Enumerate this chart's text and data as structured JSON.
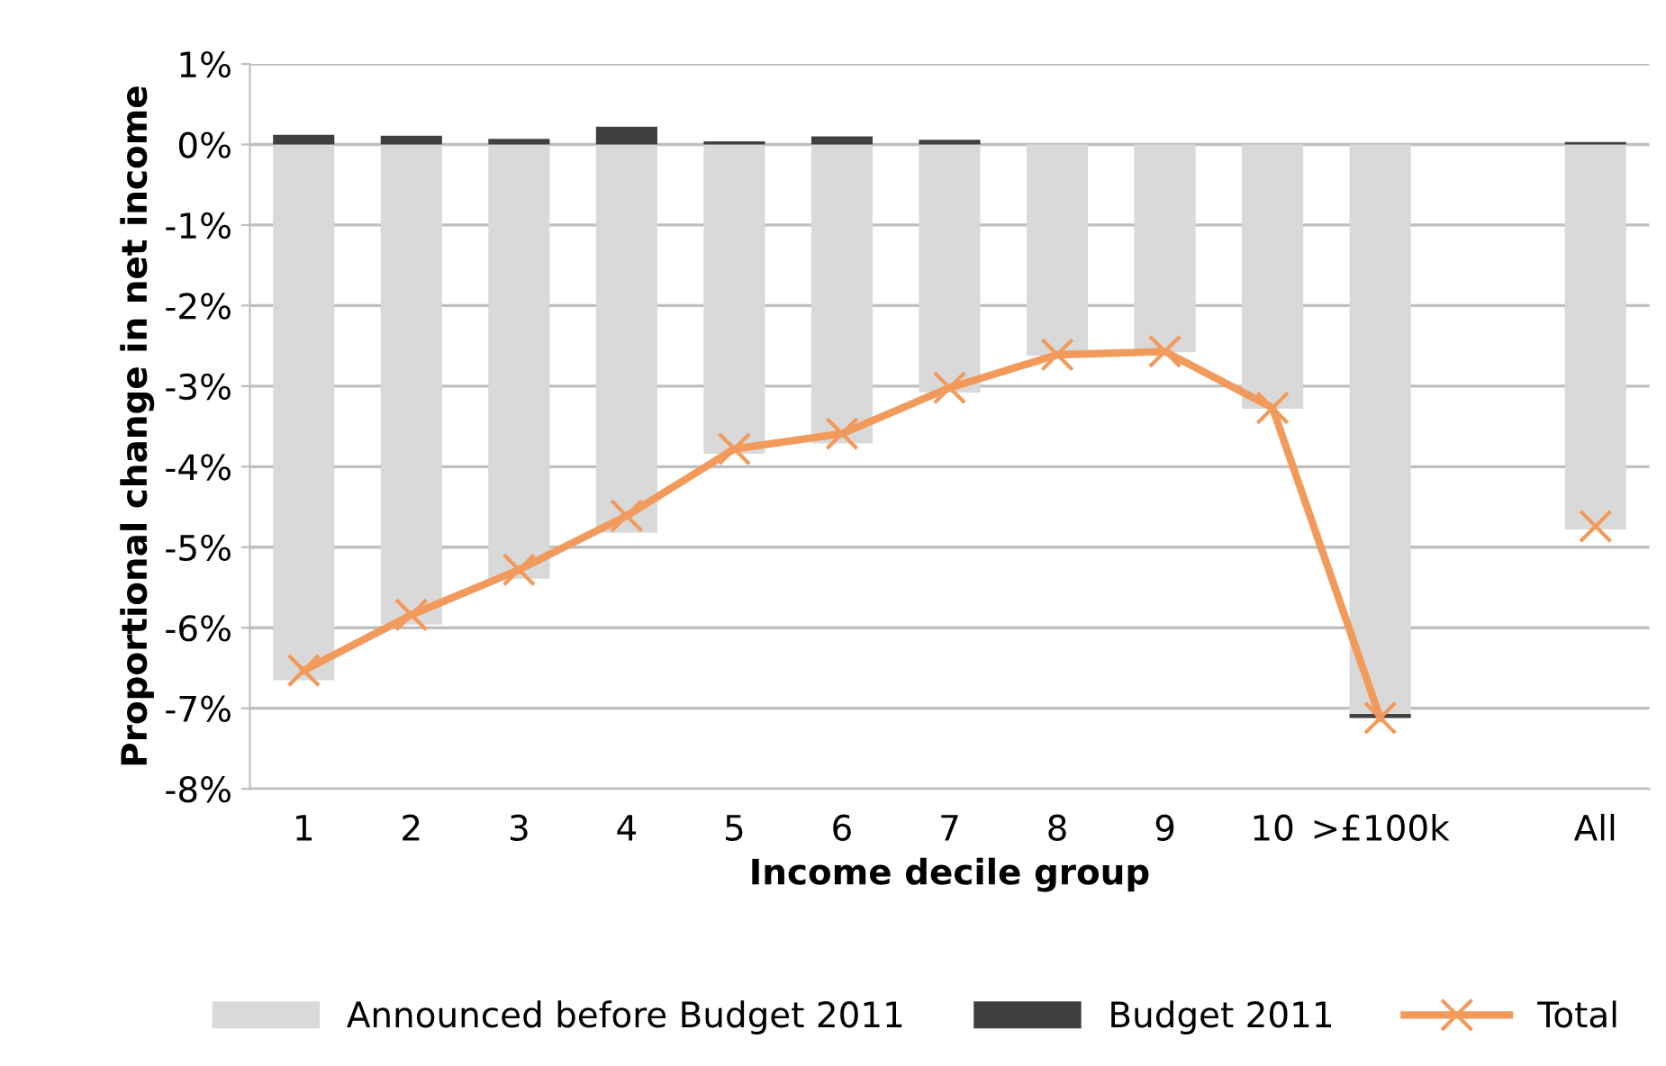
{
  "chart_data": {
    "type": "bar",
    "stacked": true,
    "xlabel": "Income decile group",
    "ylabel": "Proportional change in net income",
    "categories": [
      "1",
      "2",
      "3",
      "4",
      "5",
      "6",
      "7",
      "8",
      "9",
      "10",
      ">£100k",
      null,
      "All"
    ],
    "series": [
      {
        "name": "Announced before Budget 2011",
        "color": "#d9d9d9",
        "values": [
          -6.65,
          -5.96,
          -5.39,
          -4.82,
          -3.84,
          -3.71,
          -3.08,
          -2.62,
          -2.58,
          -3.28,
          -7.07,
          null,
          -4.78
        ]
      },
      {
        "name": "Budget 2011",
        "color": "#404040",
        "values": [
          0.12,
          0.11,
          0.07,
          0.22,
          0.04,
          0.1,
          0.06,
          0,
          0,
          0,
          -0.05,
          null,
          0.03
        ]
      },
      {
        "name": "Total",
        "type": "line",
        "color": "#f29a5c",
        "marker": "cross",
        "values": [
          -6.53,
          -5.84,
          -5.28,
          -4.61,
          -3.78,
          -3.59,
          -3.02,
          -2.61,
          -2.57,
          -3.27,
          -7.12,
          null,
          -4.74
        ]
      }
    ],
    "ylim": [
      -8,
      1
    ],
    "yticks": [
      {
        "value": 1,
        "label": "1%"
      },
      {
        "value": 0,
        "label": "0%"
      },
      {
        "value": -1,
        "label": "-1%"
      },
      {
        "value": -2,
        "label": "-2%"
      },
      {
        "value": -3,
        "label": "-3%"
      },
      {
        "value": -4,
        "label": "-4%"
      },
      {
        "value": -5,
        "label": "-5%"
      },
      {
        "value": -6,
        "label": "-6%"
      },
      {
        "value": -7,
        "label": "-7%"
      },
      {
        "value": -8,
        "label": "-8%"
      }
    ],
    "grid": "y",
    "legend": "bottom"
  }
}
